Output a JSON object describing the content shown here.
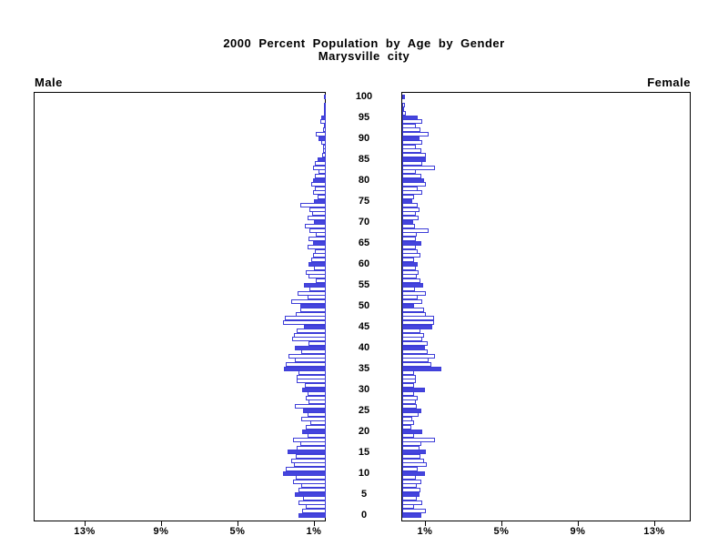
{
  "title": {
    "line1": "2000 Percent Population by Age by Gender",
    "line2": "Marysville city"
  },
  "legend": {
    "male": "Male",
    "female": "Female"
  },
  "axis": {
    "age_tick_labels": [
      "100",
      "95",
      "90",
      "85",
      "80",
      "75",
      "70",
      "65",
      "60",
      "55",
      "50",
      "45",
      "40",
      "35",
      "30",
      "25",
      "20",
      "15",
      "10",
      "5",
      "0"
    ],
    "male_pct_tick_labels": [
      "13%",
      "9%",
      "5%",
      "1%"
    ],
    "male_pct_tick_values": [
      13,
      9,
      5,
      1
    ],
    "female_pct_tick_labels": [
      "1%",
      "5%",
      "9%",
      "13%"
    ],
    "female_pct_tick_values": [
      1,
      5,
      9,
      13
    ]
  },
  "colors": {
    "bar_fill_blue": "#4545dd",
    "bar_outline_blue": "#3d3dd8",
    "bar_fill_white": "#ffffff",
    "axis_black": "#000000",
    "background": "#ffffff"
  },
  "chart_data": {
    "type": "bar",
    "subtype": "population-pyramid",
    "title": "2000 Percent Population by Age by Gender",
    "subtitle": "Marysville city",
    "unit": "percent of population per single year of age",
    "orientation": "horizontal, male bars extend left from center, female bars extend right",
    "highlight_rule": "bars for ages divisible by 5 are solid blue; all other ages are white with blue outline",
    "x_ticks_percent": [
      1,
      5,
      9,
      13
    ],
    "xlim_each_side": [
      0,
      15
    ],
    "age_axis": {
      "min": 0,
      "max": 100,
      "label_step": 5
    },
    "ages": [
      0,
      1,
      2,
      3,
      4,
      5,
      6,
      7,
      8,
      9,
      10,
      11,
      12,
      13,
      14,
      15,
      16,
      17,
      18,
      19,
      20,
      21,
      22,
      23,
      24,
      25,
      26,
      27,
      28,
      29,
      30,
      31,
      32,
      33,
      34,
      35,
      36,
      37,
      38,
      39,
      40,
      41,
      42,
      43,
      44,
      45,
      46,
      47,
      48,
      49,
      50,
      51,
      52,
      53,
      54,
      55,
      56,
      57,
      58,
      59,
      60,
      61,
      62,
      63,
      64,
      65,
      66,
      67,
      68,
      69,
      70,
      71,
      72,
      73,
      74,
      75,
      76,
      77,
      78,
      79,
      80,
      81,
      82,
      83,
      84,
      85,
      86,
      87,
      88,
      89,
      90,
      91,
      92,
      93,
      94,
      95,
      96,
      97,
      98,
      99,
      100
    ],
    "series": [
      {
        "name": "Male",
        "side": "left",
        "values": [
          1.45,
          1.25,
          1.05,
          1.45,
          1.2,
          1.6,
          1.45,
          1.3,
          1.7,
          1.55,
          2.25,
          2.1,
          1.65,
          1.8,
          1.55,
          2.0,
          1.5,
          1.35,
          1.7,
          0.97,
          1.25,
          1.07,
          0.83,
          1.3,
          0.93,
          1.17,
          1.62,
          0.89,
          1.07,
          0.97,
          1.23,
          1.09,
          1.51,
          1.5,
          1.45,
          2.2,
          2.1,
          1.6,
          1.95,
          1.3,
          1.6,
          0.89,
          1.77,
          1.66,
          1.51,
          1.15,
          2.24,
          2.16,
          1.55,
          1.31,
          1.35,
          1.82,
          0.95,
          1.46,
          0.85,
          1.15,
          0.53,
          0.92,
          1.06,
          0.62,
          0.92,
          0.76,
          0.68,
          0.57,
          0.97,
          0.65,
          0.89,
          0.5,
          0.85,
          1.1,
          0.6,
          0.95,
          0.7,
          0.85,
          1.35,
          0.6,
          0.45,
          0.65,
          0.55,
          0.75,
          0.65,
          0.55,
          0.4,
          0.65,
          0.57,
          0.42,
          0.19,
          0.16,
          0.12,
          0.23,
          0.36,
          0.51,
          0.12,
          0.06,
          0.28,
          0.23,
          0.09,
          0.03,
          0.05,
          0.0,
          0.09
        ]
      },
      {
        "name": "Female",
        "side": "right",
        "values": [
          0.98,
          1.26,
          0.61,
          1.07,
          0.76,
          0.92,
          0.95,
          0.76,
          0.98,
          0.72,
          1.17,
          0.79,
          1.3,
          1.14,
          0.95,
          1.23,
          0.9,
          1.0,
          1.7,
          0.61,
          1.07,
          0.47,
          0.61,
          0.51,
          0.87,
          0.98,
          0.76,
          0.72,
          0.79,
          0.61,
          1.17,
          0.61,
          0.72,
          0.7,
          0.6,
          2.04,
          1.54,
          1.4,
          1.7,
          1.34,
          1.17,
          1.34,
          1.07,
          1.14,
          0.95,
          1.57,
          1.65,
          1.65,
          1.26,
          1.14,
          0.64,
          1.07,
          0.79,
          1.23,
          0.67,
          1.11,
          0.95,
          0.76,
          0.87,
          0.72,
          0.83,
          0.61,
          0.95,
          0.83,
          0.72,
          0.98,
          0.72,
          0.75,
          1.4,
          0.65,
          0.55,
          0.85,
          0.7,
          0.9,
          0.79,
          0.51,
          0.64,
          1.03,
          0.79,
          1.23,
          1.14,
          0.98,
          0.72,
          1.7,
          1.03,
          1.23,
          1.23,
          0.98,
          0.72,
          1.07,
          0.92,
          1.4,
          0.93,
          0.7,
          1.03,
          0.79,
          0.17,
          0.05,
          0.14,
          0.0,
          0.14
        ]
      }
    ]
  }
}
